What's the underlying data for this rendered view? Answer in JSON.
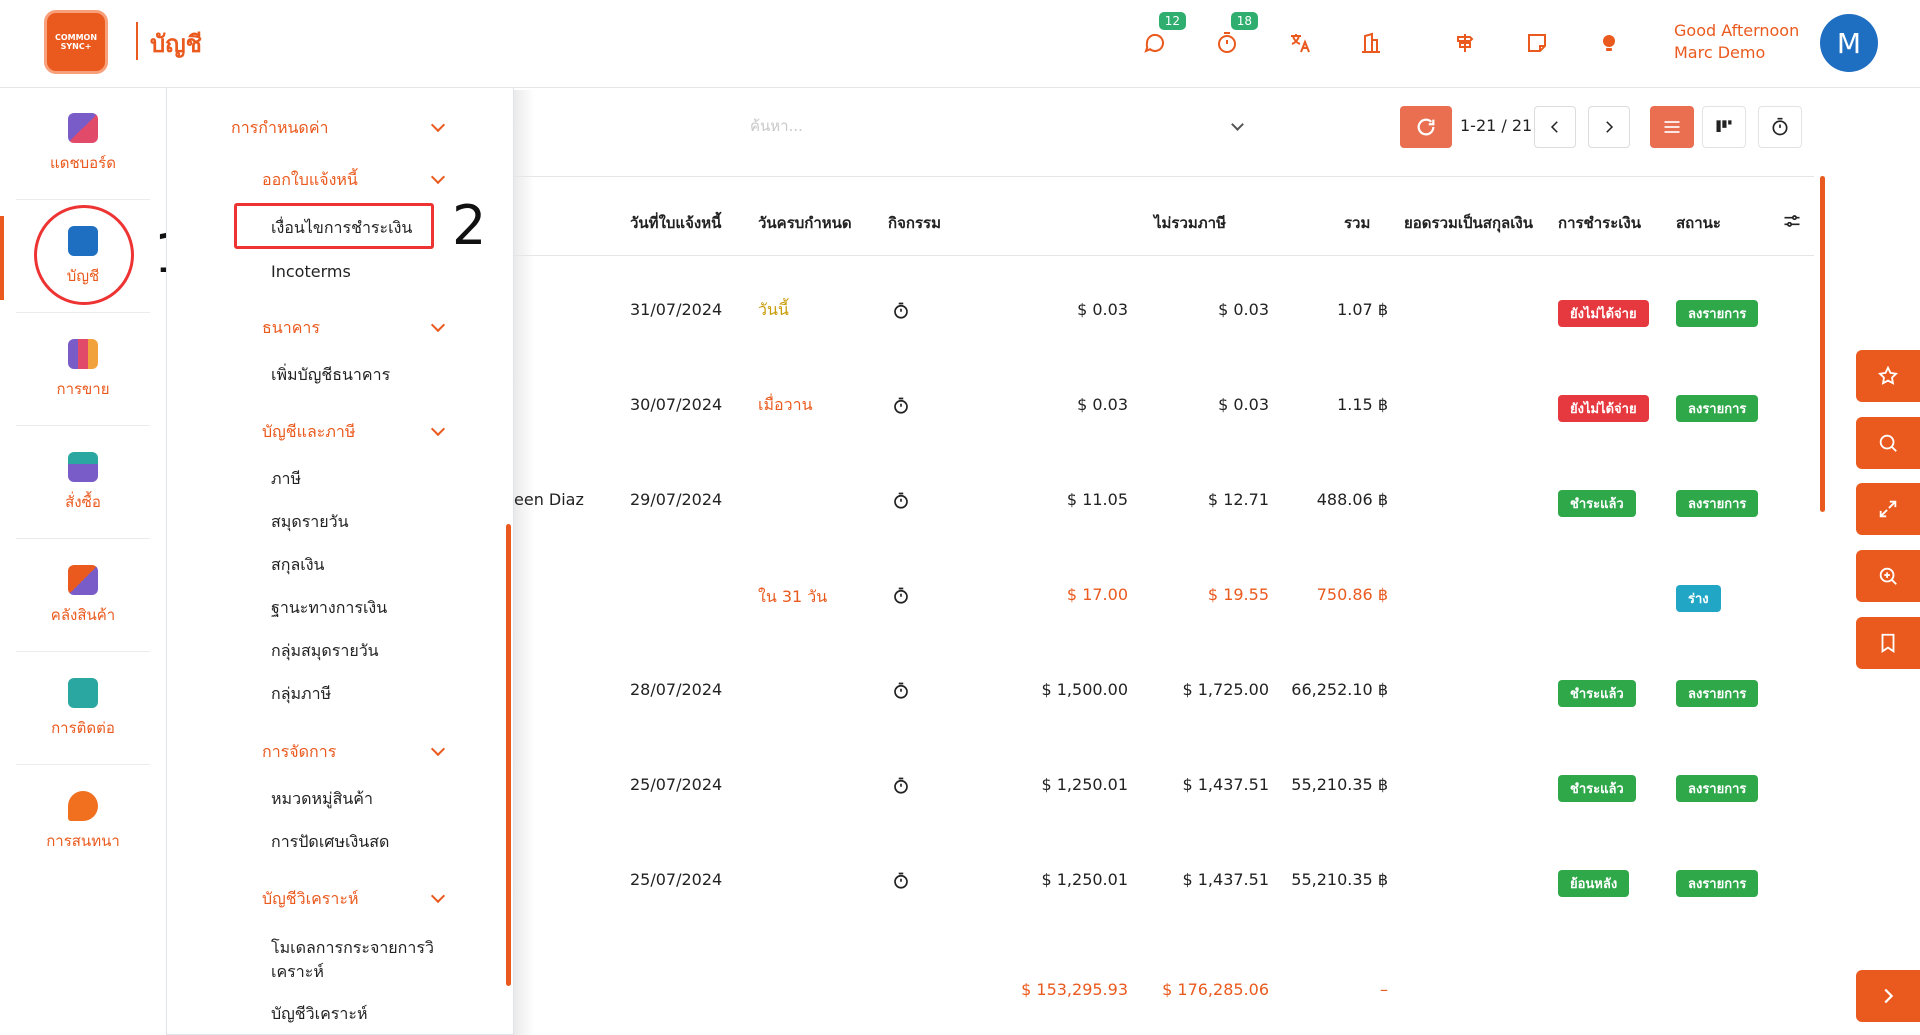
{
  "header": {
    "logo_text": "COMMON SYNC+",
    "app_title": "บัญชี",
    "messages_badge": "12",
    "activity_badge": "18",
    "greeting": "Good Afternoon",
    "user_name": "Marc Demo",
    "avatar_letter": "M"
  },
  "leftnav": {
    "items": [
      {
        "label": "แดชบอร์ด",
        "color": "#7a5cc8"
      },
      {
        "label": "บัญชี",
        "color": "#1e6fc2"
      },
      {
        "label": "การขาย",
        "color": "#ea5a1e"
      },
      {
        "label": "สั่งซื้อ",
        "color": "#2aa7a0"
      },
      {
        "label": "คลังสินค้า",
        "color": "#ea5a1e"
      },
      {
        "label": "การติดต่อ",
        "color": "#2aa7a0"
      },
      {
        "label": "การสนทนา",
        "color": "#f07020"
      }
    ]
  },
  "annotations": {
    "one": "1",
    "two": "2"
  },
  "submenu": {
    "sec_config": "การกำหนดค่า",
    "sec_invoice": "ออกใบแจ้งหนี้",
    "item_payment_terms": "เงื่อนไขการชำระเงิน",
    "item_incoterms": "Incoterms",
    "sec_bank": "ธนาคาร",
    "item_add_bank": "เพิ่มบัญชีธนาคาร",
    "sec_accounting_tax": "บัญชีและภาษี",
    "item_tax": "ภาษี",
    "item_journal": "สมุดรายวัน",
    "item_currency": "สกุลเงิน",
    "item_fiscal_position": "ฐานะทางการเงิน",
    "item_journal_group": "กลุ่มสมุดรายวัน",
    "item_tax_group": "กลุ่มภาษี",
    "sec_management": "การจัดการ",
    "item_product_category": "หมวดหมู่สินค้า",
    "item_cash_rounding": "การปัดเศษเงินสด",
    "sec_analytic": "บัญชีวิเคราะห์",
    "item_analytic_model": "โมเดลการกระจายการวิเคราะห์",
    "item_analytic_account": "บัญชีวิเคราะห์"
  },
  "toolbar": {
    "search_placeholder": "ค้นหา...",
    "pager": "1-21 / 21"
  },
  "table": {
    "headers": {
      "invoice_date": "วันที่ใบแจ้งหนี้",
      "due_date": "วันครบกำหนด",
      "activity": "กิจกรรม",
      "untaxed": "ไม่รวมภาษี",
      "total": "รวม",
      "total_currency": "ยอดรวมเป็นสกุลเงิน",
      "payment": "การชำระเงิน",
      "status": "สถานะ"
    },
    "partial_customer": "een Diaz",
    "rows": [
      {
        "date": "31/07/2024",
        "due": "วันนี้",
        "untaxed": "$ 0.03",
        "total": "$ 0.03",
        "currency_total": "1.07 ฿",
        "payment": "ยังไม่ได้จ่าย",
        "status": "ลงรายการ"
      },
      {
        "date": "30/07/2024",
        "due": "เมื่อวาน",
        "untaxed": "$ 0.03",
        "total": "$ 0.03",
        "currency_total": "1.15 ฿",
        "payment": "ยังไม่ได้จ่าย",
        "status": "ลงรายการ"
      },
      {
        "date": "29/07/2024",
        "due": "",
        "untaxed": "$ 11.05",
        "total": "$ 12.71",
        "currency_total": "488.06 ฿",
        "payment": "ชำระแล้ว",
        "status": "ลงรายการ"
      },
      {
        "date": "",
        "due": "ใน 31 วัน",
        "untaxed": "$ 17.00",
        "total": "$ 19.55",
        "currency_total": "750.86 ฿",
        "payment": "",
        "status": "ร่าง"
      },
      {
        "date": "28/07/2024",
        "due": "",
        "untaxed": "$ 1,500.00",
        "total": "$ 1,725.00",
        "currency_total": "66,252.10 ฿",
        "payment": "ชำระแล้ว",
        "status": "ลงรายการ"
      },
      {
        "date": "25/07/2024",
        "due": "",
        "untaxed": "$ 1,250.01",
        "total": "$ 1,437.51",
        "currency_total": "55,210.35 ฿",
        "payment": "ชำระแล้ว",
        "status": "ลงรายการ"
      },
      {
        "date": "25/07/2024",
        "due": "",
        "untaxed": "$ 1,250.01",
        "total": "$ 1,437.51",
        "currency_total": "55,210.35 ฿",
        "payment": "ย้อนหลัง",
        "status": "ลงรายการ"
      }
    ],
    "footer": {
      "untaxed": "$ 153,295.93",
      "total": "$ 176,285.06",
      "currency_total": "–"
    }
  }
}
